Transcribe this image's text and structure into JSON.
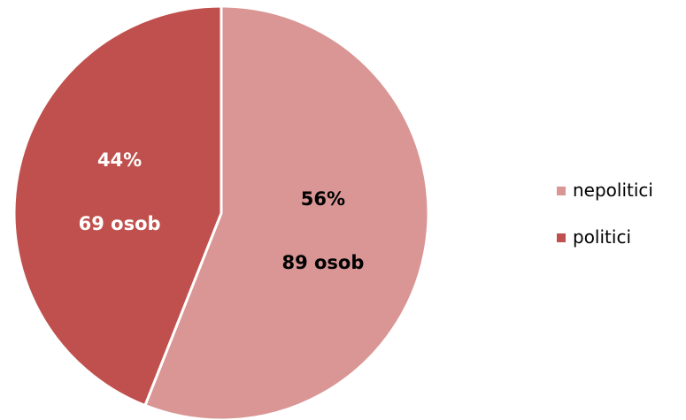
{
  "chart_data": {
    "type": "pie",
    "title": "",
    "slices": [
      {
        "name": "nepolitici",
        "percent": 56,
        "label_pct": "56%",
        "label_count": "89 osob",
        "value": 89,
        "color": "#d99694",
        "label_color": "#000000"
      },
      {
        "name": "politici",
        "percent": 44,
        "label_pct": "44%",
        "label_count": "69 osob",
        "value": 69,
        "color": "#c0504d",
        "label_color": "#ffffff"
      }
    ],
    "legend_position": "right",
    "start_angle": "top, clockwise"
  }
}
